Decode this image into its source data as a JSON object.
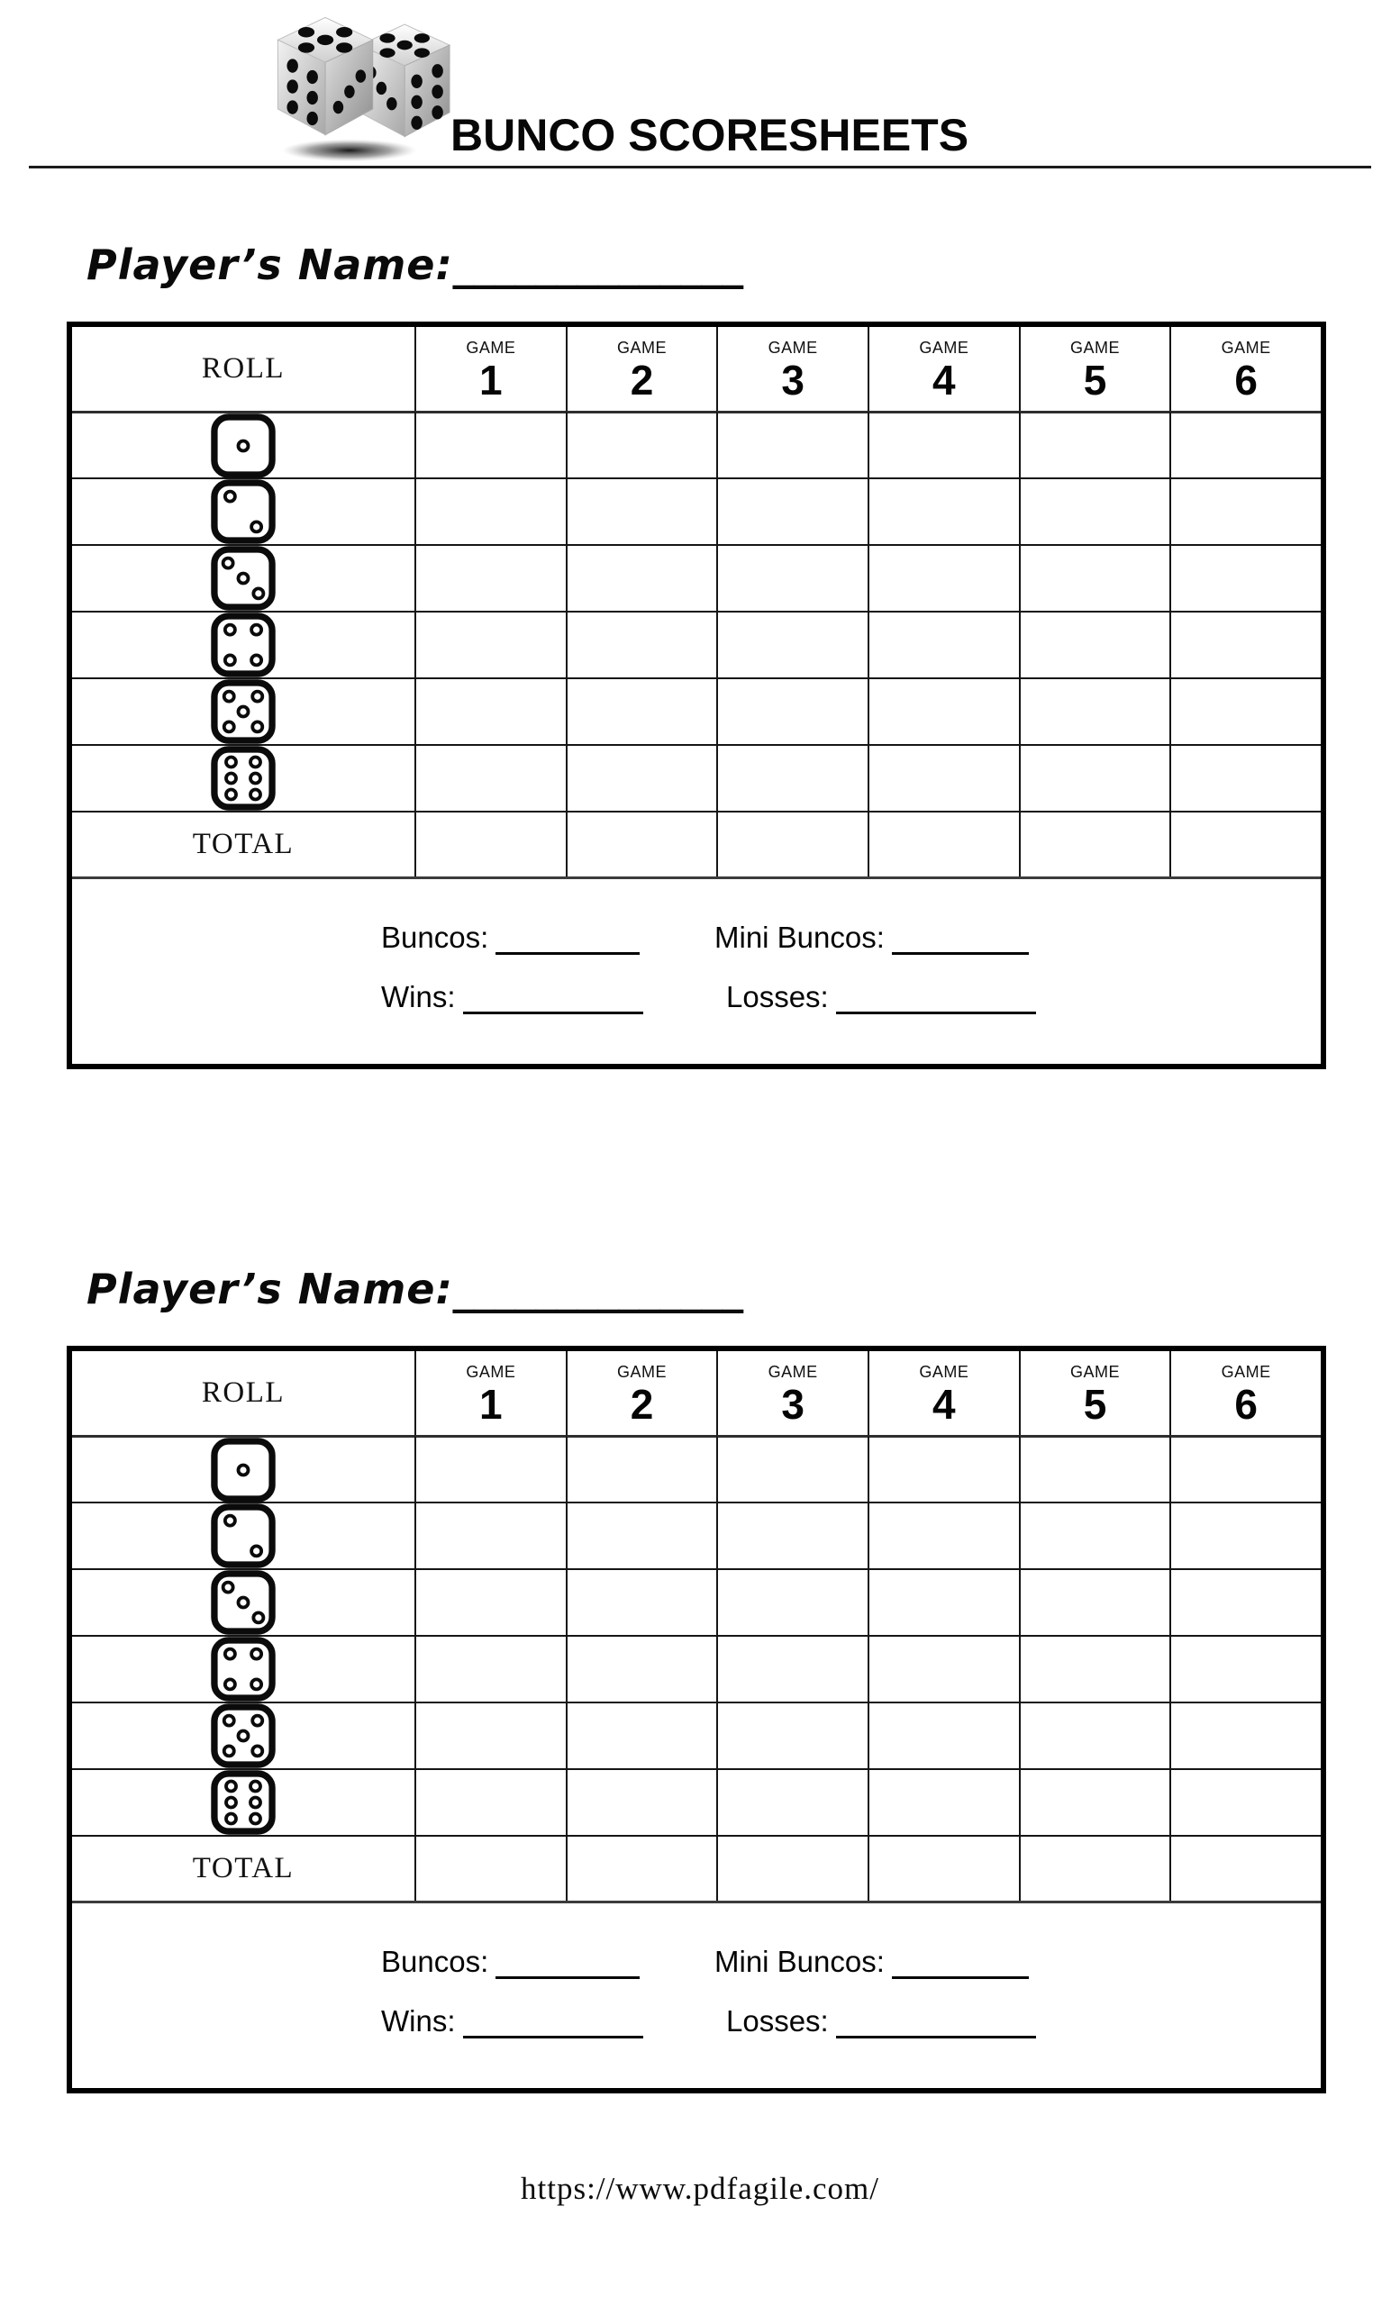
{
  "page": {
    "background": "#ffffff",
    "ink": "#000000",
    "grid_line": "#151515"
  },
  "header": {
    "title": "BUNCO SCORESHEETS",
    "logo_icon": "dice-pair-logo"
  },
  "sheets": [
    {
      "player_name_label": "Player’s Name:",
      "player_name_blank": "______________",
      "table": {
        "roll_header": "ROLL",
        "games": [
          {
            "label": "GAME",
            "number": "1"
          },
          {
            "label": "GAME",
            "number": "2"
          },
          {
            "label": "GAME",
            "number": "3"
          },
          {
            "label": "GAME",
            "number": "4"
          },
          {
            "label": "GAME",
            "number": "5"
          },
          {
            "label": "GAME",
            "number": "6"
          }
        ],
        "rows": [
          {
            "die": 1,
            "cells": [
              "",
              "",
              "",
              "",
              "",
              ""
            ]
          },
          {
            "die": 2,
            "cells": [
              "",
              "",
              "",
              "",
              "",
              ""
            ]
          },
          {
            "die": 3,
            "cells": [
              "",
              "",
              "",
              "",
              "",
              ""
            ]
          },
          {
            "die": 4,
            "cells": [
              "",
              "",
              "",
              "",
              "",
              ""
            ]
          },
          {
            "die": 5,
            "cells": [
              "",
              "",
              "",
              "",
              "",
              ""
            ]
          },
          {
            "die": 6,
            "cells": [
              "",
              "",
              "",
              "",
              "",
              ""
            ]
          }
        ],
        "total_label": "TOTAL",
        "total_cells": [
          "",
          "",
          "",
          "",
          "",
          ""
        ]
      },
      "summary": {
        "buncos_label": "Buncos:",
        "buncos_value": "",
        "mini_buncos_label": "Mini Buncos:",
        "mini_buncos_value": "",
        "wins_label": "Wins:",
        "wins_value": "",
        "losses_label": "Losses:",
        "losses_value": ""
      }
    },
    {
      "player_name_label": "Player’s Name:",
      "player_name_blank": "______________",
      "table": {
        "roll_header": "ROLL",
        "games": [
          {
            "label": "GAME",
            "number": "1"
          },
          {
            "label": "GAME",
            "number": "2"
          },
          {
            "label": "GAME",
            "number": "3"
          },
          {
            "label": "GAME",
            "number": "4"
          },
          {
            "label": "GAME",
            "number": "5"
          },
          {
            "label": "GAME",
            "number": "6"
          }
        ],
        "rows": [
          {
            "die": 1,
            "cells": [
              "",
              "",
              "",
              "",
              "",
              ""
            ]
          },
          {
            "die": 2,
            "cells": [
              "",
              "",
              "",
              "",
              "",
              ""
            ]
          },
          {
            "die": 3,
            "cells": [
              "",
              "",
              "",
              "",
              "",
              ""
            ]
          },
          {
            "die": 4,
            "cells": [
              "",
              "",
              "",
              "",
              "",
              ""
            ]
          },
          {
            "die": 5,
            "cells": [
              "",
              "",
              "",
              "",
              "",
              ""
            ]
          },
          {
            "die": 6,
            "cells": [
              "",
              "",
              "",
              "",
              "",
              ""
            ]
          }
        ],
        "total_label": "TOTAL",
        "total_cells": [
          "",
          "",
          "",
          "",
          "",
          ""
        ]
      },
      "summary": {
        "buncos_label": "Buncos:",
        "buncos_value": "",
        "mini_buncos_label": "Mini Buncos:",
        "mini_buncos_value": "",
        "wins_label": "Wins:",
        "wins_value": "",
        "losses_label": "Losses:",
        "losses_value": ""
      }
    }
  ],
  "footer": {
    "url": "https://www.pdfagile.com/"
  }
}
